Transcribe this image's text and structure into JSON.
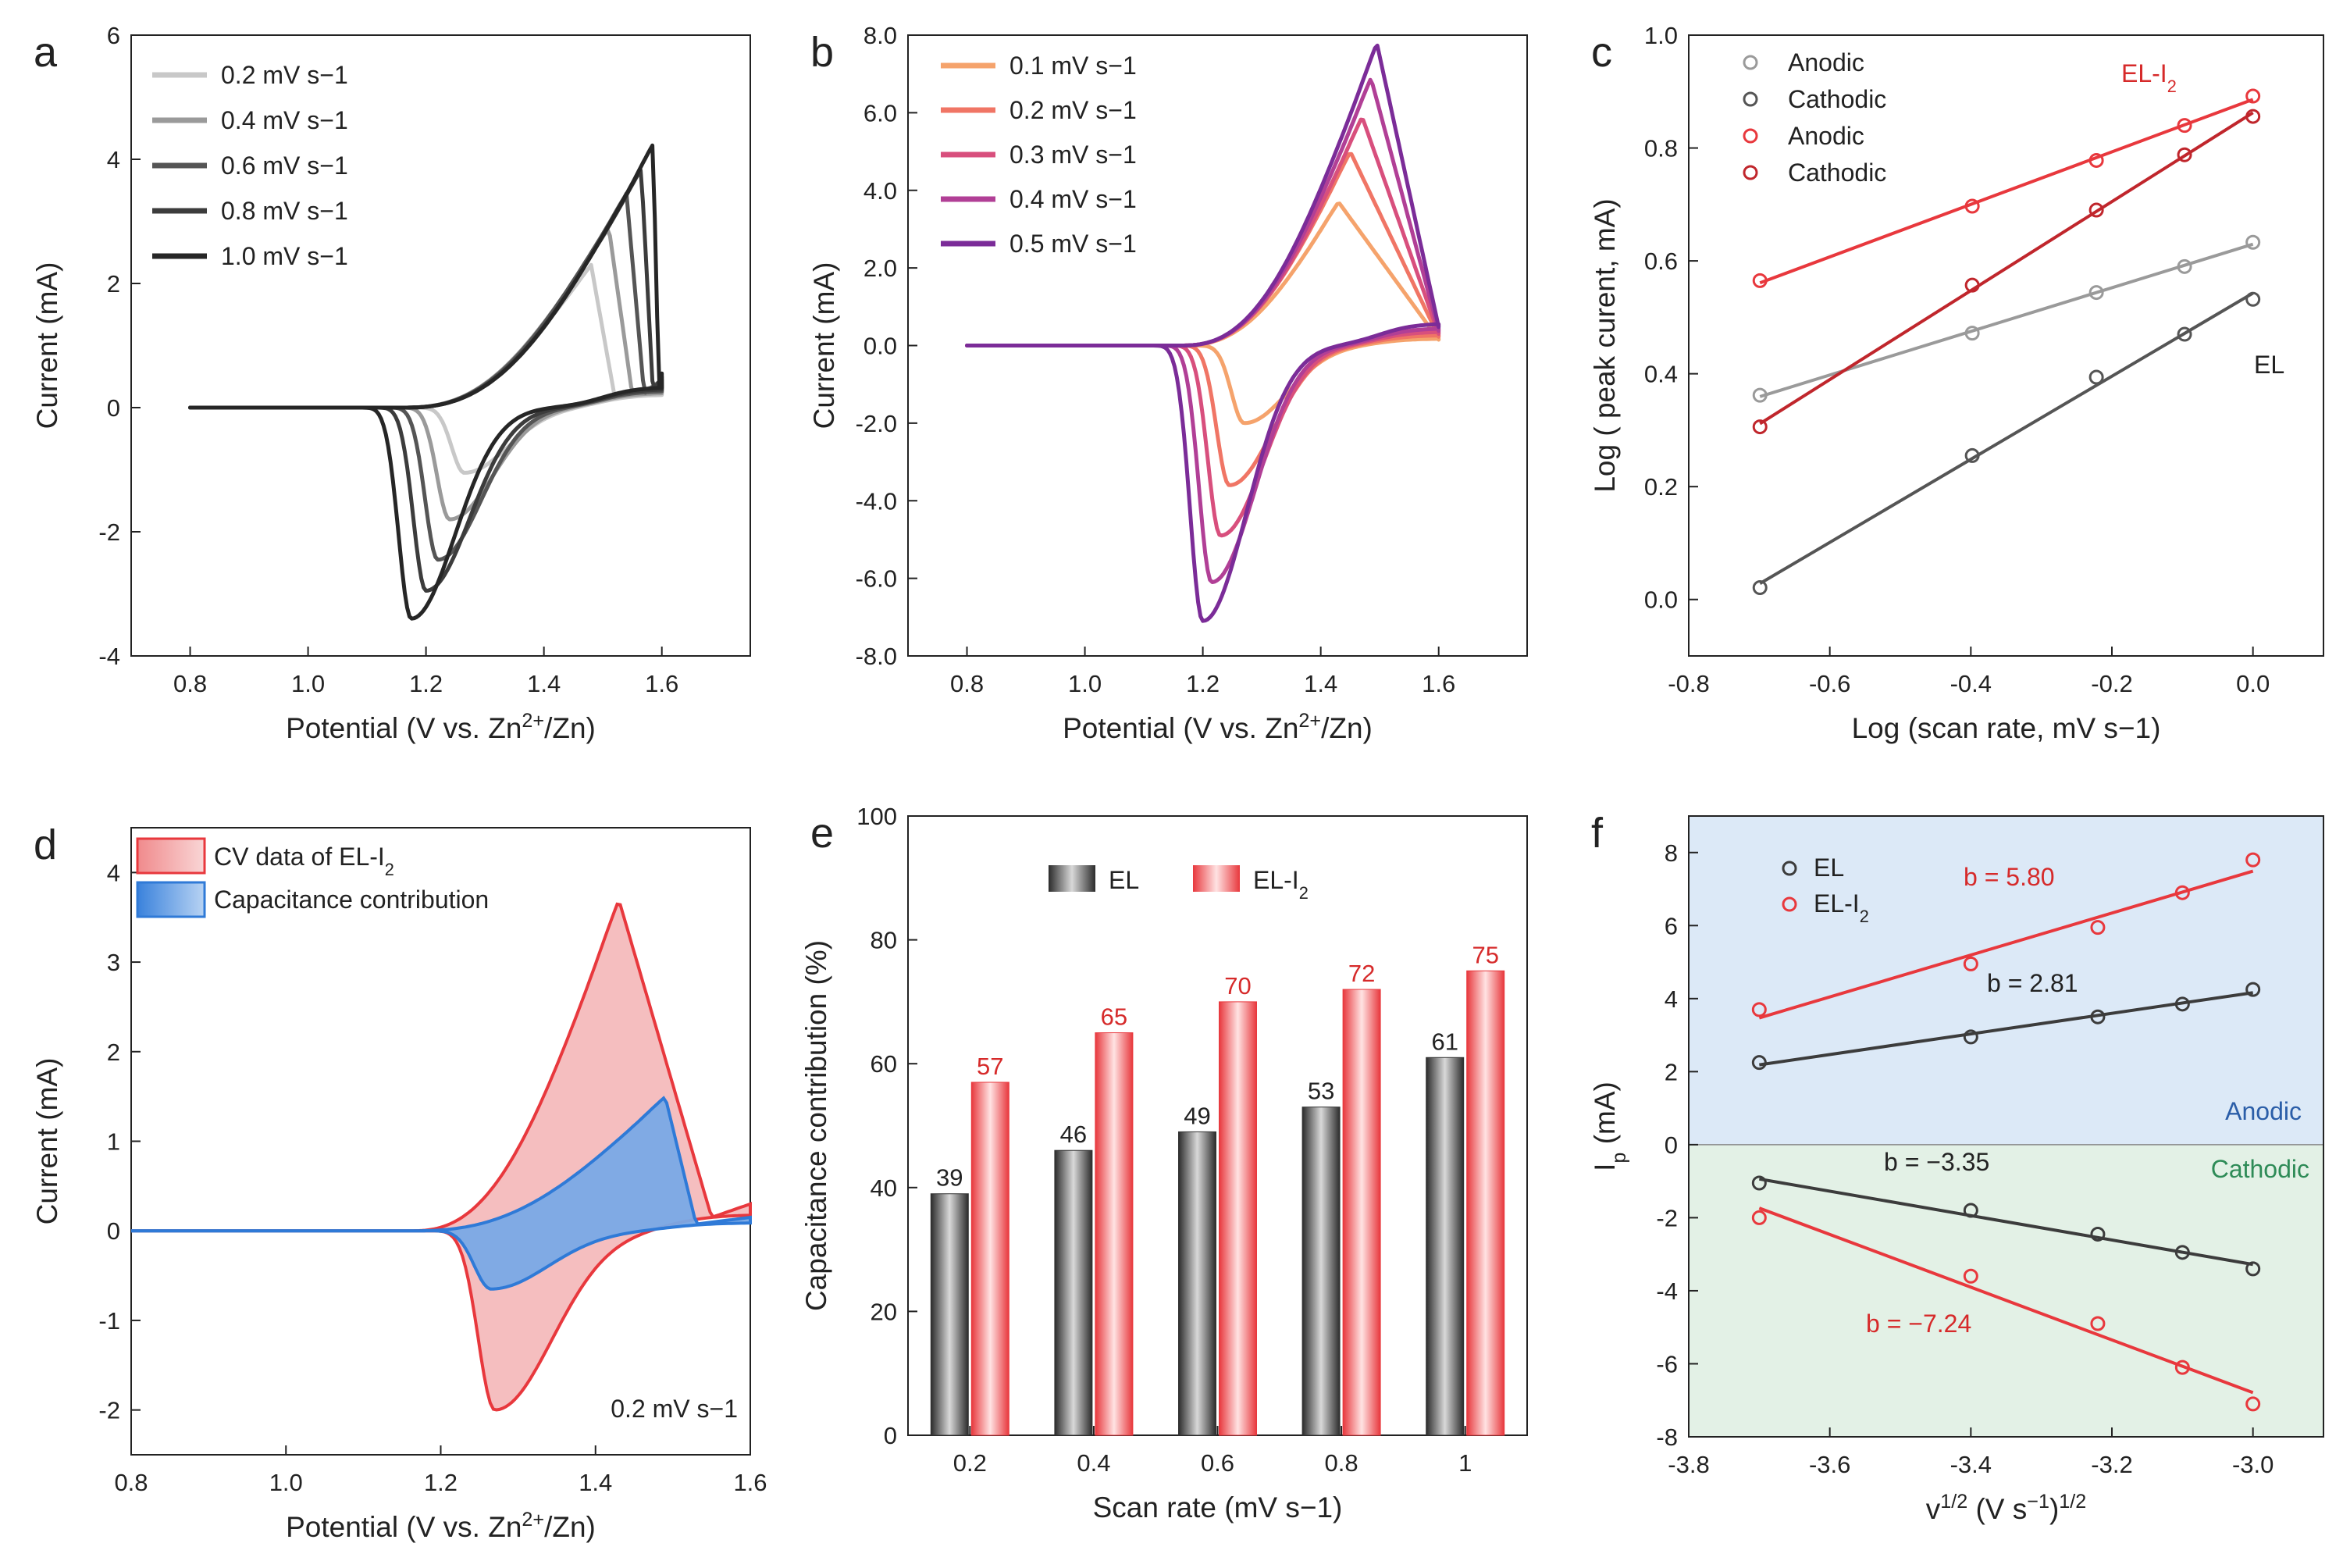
{
  "colors": {
    "axis": "#222222",
    "gray_light": "#c8c8c8",
    "gray_mid": "#9a9a9a",
    "gray_dark": "#555555",
    "gray_darker": "#3c3c3c",
    "gray_darkest": "#262626",
    "red": "#e8383d",
    "dark_red": "#c0262c",
    "red_fill": "#f3b3b4",
    "blue": "#2f7ad7",
    "blue_fill": "#79a9e6",
    "anodic_bg": "#dce9f7",
    "cathodic_bg": "#e3f1e6",
    "label_red": "#d62a2a",
    "label_blue": "#2b5ea8",
    "label_green": "#2e8b57",
    "purple_1": "#f5a36c",
    "purple_2": "#f07565",
    "purple_3": "#d84f7d",
    "purple_4": "#b13f96",
    "purple_5": "#7b2c98"
  },
  "chart_data": [
    {
      "id": "a",
      "panel_label": "a",
      "type": "line",
      "xlabel_parts": [
        "Potential (V vs. Zn",
        "2+",
        "/Zn)"
      ],
      "ylabel": "Current (mA)",
      "xlim": [
        0.7,
        1.75
      ],
      "ylim": [
        -4,
        6
      ],
      "xticks": [
        0.8,
        1.0,
        1.2,
        1.4,
        1.6
      ],
      "xtick_labels": [
        "0.8",
        "1.0",
        "1.2",
        "1.4",
        "1.6"
      ],
      "yticks": [
        -4,
        -2,
        0,
        2,
        4,
        6
      ],
      "ytick_labels": [
        "-4",
        "-2",
        "0",
        "2",
        "4",
        "6"
      ],
      "legend": [
        "0.2 mV s−1",
        "0.4 mV s−1",
        "0.6 mV s−1",
        "0.8 mV s−1",
        "1.0 mV s−1"
      ],
      "series": [
        {
          "name": "0.2 mV s−1",
          "Ea": 1.48,
          "Ia": 2.3,
          "Ec": 1.265,
          "Ic": -1.05,
          "Ew": 1.52,
          "Imax": 0.35
        },
        {
          "name": "0.4 mV s−1",
          "Ea": 1.51,
          "Ia": 2.9,
          "Ec": 1.24,
          "Ic": -1.8,
          "Ew": 1.55,
          "Imax": 0.4
        },
        {
          "name": "0.6 mV s−1",
          "Ea": 1.54,
          "Ia": 3.45,
          "Ec": 1.22,
          "Ic": -2.45,
          "Ew": 1.57,
          "Imax": 0.45
        },
        {
          "name": "0.8 mV s−1",
          "Ea": 1.565,
          "Ia": 3.85,
          "Ec": 1.2,
          "Ic": -2.95,
          "Ew": 1.585,
          "Imax": 0.5
        },
        {
          "name": "1.0 mV s−1",
          "Ea": 1.585,
          "Ia": 4.25,
          "Ec": 1.175,
          "Ic": -3.4,
          "Ew": 1.595,
          "Imax": 0.55
        }
      ]
    },
    {
      "id": "b",
      "panel_label": "b",
      "type": "line",
      "xlabel_parts": [
        "Potential (V vs. Zn",
        "2+",
        "/Zn)"
      ],
      "ylabel": "Current (mA)",
      "xlim": [
        0.7,
        1.75
      ],
      "ylim": [
        -8,
        8
      ],
      "xticks": [
        0.8,
        1.0,
        1.2,
        1.4,
        1.6
      ],
      "xtick_labels": [
        "0.8",
        "1.0",
        "1.2",
        "1.4",
        "1.6"
      ],
      "yticks": [
        -8,
        -6,
        -4,
        -2,
        0,
        2,
        4,
        6,
        8
      ],
      "ytick_labels": [
        "-8.0",
        "-6.0",
        "-4.0",
        "-2.0",
        "0.0",
        "2.0",
        "4.0",
        "6.0",
        "8.0"
      ],
      "legend": [
        "0.1 mV s−1",
        "0.2 mV s−1",
        "0.3 mV s−1",
        "0.4 mV s−1",
        "0.5 mV s−1"
      ],
      "series": [
        {
          "name": "0.1 mV s−1",
          "Ea": 1.43,
          "Ia": 3.7,
          "Ec": 1.27,
          "Ic": -2.0,
          "Ew": 1.6,
          "Imax": 0.3
        },
        {
          "name": "0.2 mV s−1",
          "Ea": 1.45,
          "Ia": 5.0,
          "Ec": 1.245,
          "Ic": -3.6,
          "Ew": 1.6,
          "Imax": 0.45
        },
        {
          "name": "0.3 mV s−1",
          "Ea": 1.47,
          "Ia": 5.9,
          "Ec": 1.23,
          "Ic": -4.9,
          "Ew": 1.6,
          "Imax": 0.6
        },
        {
          "name": "0.4 mV s−1",
          "Ea": 1.485,
          "Ia": 6.9,
          "Ec": 1.215,
          "Ic": -6.1,
          "Ew": 1.6,
          "Imax": 0.75
        },
        {
          "name": "0.5 mV s−1",
          "Ea": 1.495,
          "Ia": 7.8,
          "Ec": 1.2,
          "Ic": -7.1,
          "Ew": 1.6,
          "Imax": 0.95
        }
      ]
    },
    {
      "id": "c",
      "panel_label": "c",
      "type": "scatter",
      "xlabel": "Log (scan rate, mV s−1)",
      "ylabel": "Log ( peak curent, mA)",
      "xlim": [
        -0.8,
        0.1
      ],
      "ylim": [
        -0.1,
        1.0
      ],
      "xticks": [
        -0.8,
        -0.6,
        -0.4,
        -0.2,
        0.0
      ],
      "xtick_labels": [
        "-0.8",
        "-0.6",
        "-0.4",
        "-0.2",
        "0.0"
      ],
      "yticks": [
        0.0,
        0.2,
        0.4,
        0.6,
        0.8,
        1.0
      ],
      "ytick_labels": [
        "0.0",
        "0.2",
        "0.4",
        "0.6",
        "0.8",
        "1.0"
      ],
      "x": [
        -0.699,
        -0.398,
        -0.222,
        -0.097,
        0.0
      ],
      "legend": [
        "Anodic",
        "Cathodic",
        "Anodic",
        "Cathodic"
      ],
      "annotations": [
        "EL-I",
        "2",
        "EL"
      ],
      "series": [
        {
          "name": "EL Anodic",
          "values": [
            0.362,
            0.472,
            0.544,
            0.59,
            0.633
          ]
        },
        {
          "name": "EL Cathodic",
          "values": [
            0.021,
            0.255,
            0.394,
            0.47,
            0.532
          ]
        },
        {
          "name": "EL-I2 Anodic",
          "values": [
            0.565,
            0.697,
            0.778,
            0.84,
            0.892
          ]
        },
        {
          "name": "EL-I2 Cathodic",
          "values": [
            0.306,
            0.557,
            0.69,
            0.788,
            0.856
          ]
        }
      ]
    },
    {
      "id": "d",
      "panel_label": "d",
      "type": "area",
      "xlabel_parts": [
        "Potential (V vs. Zn",
        "2+",
        "/Zn)"
      ],
      "ylabel": "Current (mA)",
      "xlim": [
        0.8,
        1.6
      ],
      "ylim": [
        -2.5,
        4.5
      ],
      "xticks": [
        0.8,
        1.0,
        1.2,
        1.4,
        1.6
      ],
      "xtick_labels": [
        "0.8",
        "1.0",
        "1.2",
        "1.4",
        "1.6"
      ],
      "yticks": [
        -2,
        -1,
        0,
        1,
        2,
        3,
        4
      ],
      "ytick_labels": [
        "-2",
        "-1",
        "0",
        "1",
        "2",
        "3",
        "4"
      ],
      "legend": [
        "CV data of EL-I",
        "2",
        "Capacitance contribution"
      ],
      "annotation": "0.2 mV s−1",
      "series": [
        {
          "name": "CV data of EL-I2",
          "Ea": 1.43,
          "Ia": 3.7,
          "Ec": 1.27,
          "Ic": -2.0,
          "Ew": 1.55,
          "Imax": 0.3
        },
        {
          "name": "Capacitance contribution",
          "Ea": 1.49,
          "Ia": 1.5,
          "Ec": 1.265,
          "Ic": -0.65,
          "Ew": 1.53,
          "Imax": 0.15
        }
      ]
    },
    {
      "id": "e",
      "panel_label": "e",
      "type": "bar",
      "xlabel": "Scan rate (mV s−1)",
      "ylabel": "Capacitance contribution (%)",
      "ylim": [
        0,
        100
      ],
      "yticks": [
        0,
        20,
        40,
        60,
        80,
        100
      ],
      "ytick_labels": [
        "0",
        "20",
        "40",
        "60",
        "80",
        "100"
      ],
      "categories": [
        "0.2",
        "0.4",
        "0.6",
        "0.8",
        "1"
      ],
      "legend": [
        "EL",
        "EL-I",
        "2"
      ],
      "series": [
        {
          "name": "EL",
          "values": [
            39,
            46,
            49,
            53,
            61
          ]
        },
        {
          "name": "EL-I2",
          "values": [
            57,
            65,
            70,
            72,
            75
          ]
        }
      ]
    },
    {
      "id": "f",
      "panel_label": "f",
      "type": "scatter",
      "xlabel_parts": [
        "v",
        "1/2",
        " (V s",
        "−1",
        ")",
        "1/2"
      ],
      "ylabel_parts": [
        "I",
        "p",
        " (mA)"
      ],
      "xlim": [
        -3.8,
        -2.9
      ],
      "ylim": [
        -8,
        9
      ],
      "xticks": [
        -3.8,
        -3.6,
        -3.4,
        -3.2,
        -3.0
      ],
      "xtick_labels": [
        "-3.8",
        "-3.6",
        "-3.4",
        "-3.2",
        "-3.0"
      ],
      "yticks": [
        -8,
        -6,
        -4,
        -2,
        0,
        2,
        4,
        6,
        8
      ],
      "ytick_labels": [
        "-8",
        "-6",
        "-4",
        "-2",
        "0",
        "2",
        "4",
        "6",
        "8"
      ],
      "x": [
        -3.7,
        -3.4,
        -3.22,
        -3.1,
        -3.0
      ],
      "legend": [
        "EL",
        "EL-I",
        "2"
      ],
      "region_labels": [
        "Anodic",
        "Cathodic"
      ],
      "slope_labels": [
        "b = 5.80",
        "b = 2.81",
        "b = −3.35",
        "b = −7.24"
      ],
      "series": [
        {
          "name": "EL-I2 anodic",
          "values": [
            3.7,
            4.95,
            5.95,
            6.9,
            7.8
          ]
        },
        {
          "name": "EL anodic",
          "values": [
            2.25,
            2.95,
            3.5,
            3.85,
            4.25
          ]
        },
        {
          "name": "EL cathodic",
          "values": [
            -1.05,
            -1.8,
            -2.45,
            -2.95,
            -3.4
          ]
        },
        {
          "name": "EL-I2 cathodic",
          "values": [
            -2.0,
            -3.6,
            -4.9,
            -6.1,
            -7.1
          ]
        }
      ]
    }
  ]
}
